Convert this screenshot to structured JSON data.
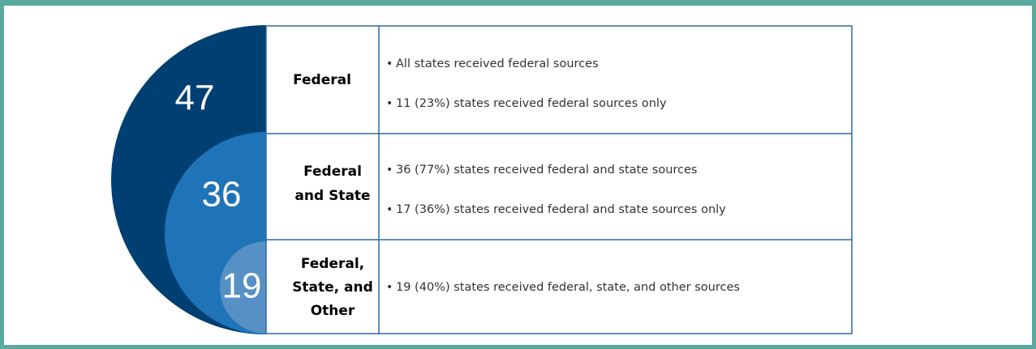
{
  "groups": [
    {
      "count": 47,
      "label": [
        "Federal"
      ],
      "bullets": [
        "All states received federal sources",
        "11 (23%) states received federal sources only"
      ]
    },
    {
      "count": 36,
      "label": [
        "Federal",
        "and State"
      ],
      "bullets": [
        "36 (77%) states received federal and state sources",
        "17 (36%) states received federal and state sources only"
      ]
    },
    {
      "count": 19,
      "label": [
        "Federal,",
        "State, and",
        "Other"
      ],
      "bullets": [
        "19 (40%) states received federal, state, and other sources"
      ]
    }
  ]
}
